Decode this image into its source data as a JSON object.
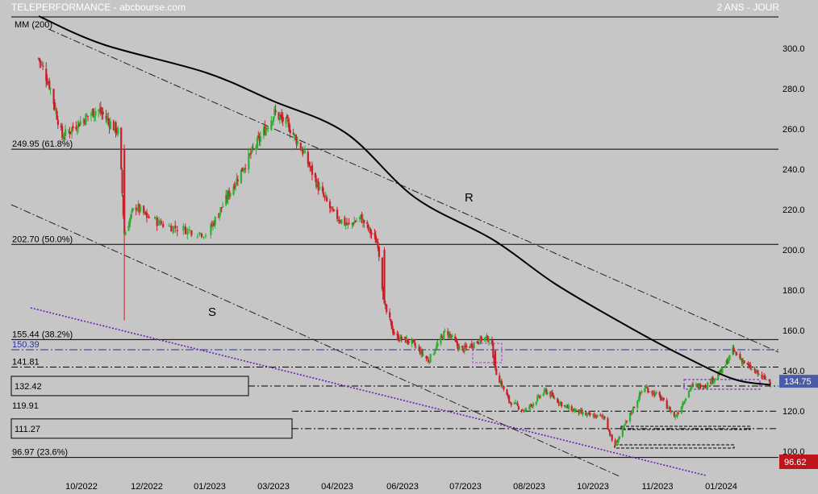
{
  "header": {
    "title": "TELEPERFORMANCE - abcbourse.com",
    "period": "2 ANS - JOUR"
  },
  "chart_data": {
    "type": "candlestick",
    "ma_label": "MM (200)",
    "ylim": [
      94,
      320
    ],
    "y_ticks": [
      "100.0",
      "120.0",
      "140.0",
      "160.0",
      "180.0",
      "200.0",
      "220.0",
      "240.0",
      "260.0",
      "280.0",
      "300.0"
    ],
    "y_tick_values": [
      100,
      120,
      140,
      160,
      180,
      200,
      220,
      240,
      260,
      280,
      300
    ],
    "x_ticks": [
      "10/2022",
      "12/2022",
      "01/2023",
      "03/2023",
      "04/2023",
      "06/2023",
      "07/2023",
      "08/2023",
      "10/2023",
      "11/2023",
      "01/2024"
    ],
    "x_tick_days": [
      40,
      101,
      132,
      191,
      252,
      313,
      374,
      434,
      497,
      558,
      619
    ],
    "xlim": [
      -10,
      695
    ],
    "levels": [
      {
        "label": "249.95  (61.8%)",
        "value": 249.95
      },
      {
        "label": "202.70  (50.0%)",
        "value": 202.7
      },
      {
        "label": "155.44  (38.2%)",
        "value": 155.44
      },
      {
        "label": "150.39",
        "value": 150.39
      },
      {
        "label": "141.81",
        "value": 141.81
      },
      {
        "label": "132.42",
        "value": 132.42
      },
      {
        "label": "119.91",
        "value": 119.91
      },
      {
        "label": "111.27",
        "value": 111.27
      },
      {
        "label": "96.97  (23.6%)",
        "value": 96.97
      }
    ],
    "trend_labels": {
      "resistance": "R",
      "support": "S"
    },
    "last_price": "134.75",
    "current_price": "96.62",
    "close_anchors": [
      {
        "day": 0,
        "close": 295
      },
      {
        "day": 10,
        "close": 282
      },
      {
        "day": 22,
        "close": 256
      },
      {
        "day": 35,
        "close": 262
      },
      {
        "day": 55,
        "close": 270
      },
      {
        "day": 75,
        "close": 258
      },
      {
        "day": 80,
        "close": 208
      },
      {
        "day": 90,
        "close": 222
      },
      {
        "day": 110,
        "close": 212
      },
      {
        "day": 130,
        "close": 208
      },
      {
        "day": 160,
        "close": 238
      },
      {
        "day": 178,
        "close": 255
      },
      {
        "day": 192,
        "close": 268
      },
      {
        "day": 205,
        "close": 262
      },
      {
        "day": 220,
        "close": 248
      },
      {
        "day": 235,
        "close": 230
      },
      {
        "day": 248,
        "close": 218
      },
      {
        "day": 262,
        "close": 212
      },
      {
        "day": 274,
        "close": 216
      },
      {
        "day": 290,
        "close": 203
      },
      {
        "day": 296,
        "close": 172
      },
      {
        "day": 306,
        "close": 157
      },
      {
        "day": 322,
        "close": 154
      },
      {
        "day": 338,
        "close": 145
      },
      {
        "day": 355,
        "close": 160
      },
      {
        "day": 370,
        "close": 150
      },
      {
        "day": 390,
        "close": 156
      },
      {
        "day": 398,
        "close": 156
      },
      {
        "day": 402,
        "close": 140
      },
      {
        "day": 415,
        "close": 125
      },
      {
        "day": 430,
        "close": 120
      },
      {
        "day": 450,
        "close": 130
      },
      {
        "day": 470,
        "close": 122
      },
      {
        "day": 490,
        "close": 118
      },
      {
        "day": 508,
        "close": 117
      },
      {
        "day": 517,
        "close": 102
      },
      {
        "day": 530,
        "close": 116
      },
      {
        "day": 545,
        "close": 132
      },
      {
        "day": 560,
        "close": 127
      },
      {
        "day": 575,
        "close": 117
      },
      {
        "day": 590,
        "close": 132
      },
      {
        "day": 605,
        "close": 133
      },
      {
        "day": 620,
        "close": 140
      },
      {
        "day": 630,
        "close": 150
      },
      {
        "day": 645,
        "close": 142
      },
      {
        "day": 660,
        "close": 136
      },
      {
        "day": 666,
        "close": 134.75
      }
    ],
    "ma200": [
      {
        "day": 0,
        "value": 316
      },
      {
        "day": 60,
        "value": 302
      },
      {
        "day": 130,
        "value": 288
      },
      {
        "day": 190,
        "value": 274
      },
      {
        "day": 260,
        "value": 258
      },
      {
        "day": 325,
        "value": 226
      },
      {
        "day": 400,
        "value": 205
      },
      {
        "day": 460,
        "value": 183
      },
      {
        "day": 530,
        "value": 162
      },
      {
        "day": 580,
        "value": 148
      },
      {
        "day": 630,
        "value": 136
      },
      {
        "day": 666,
        "value": 133
      }
    ]
  }
}
